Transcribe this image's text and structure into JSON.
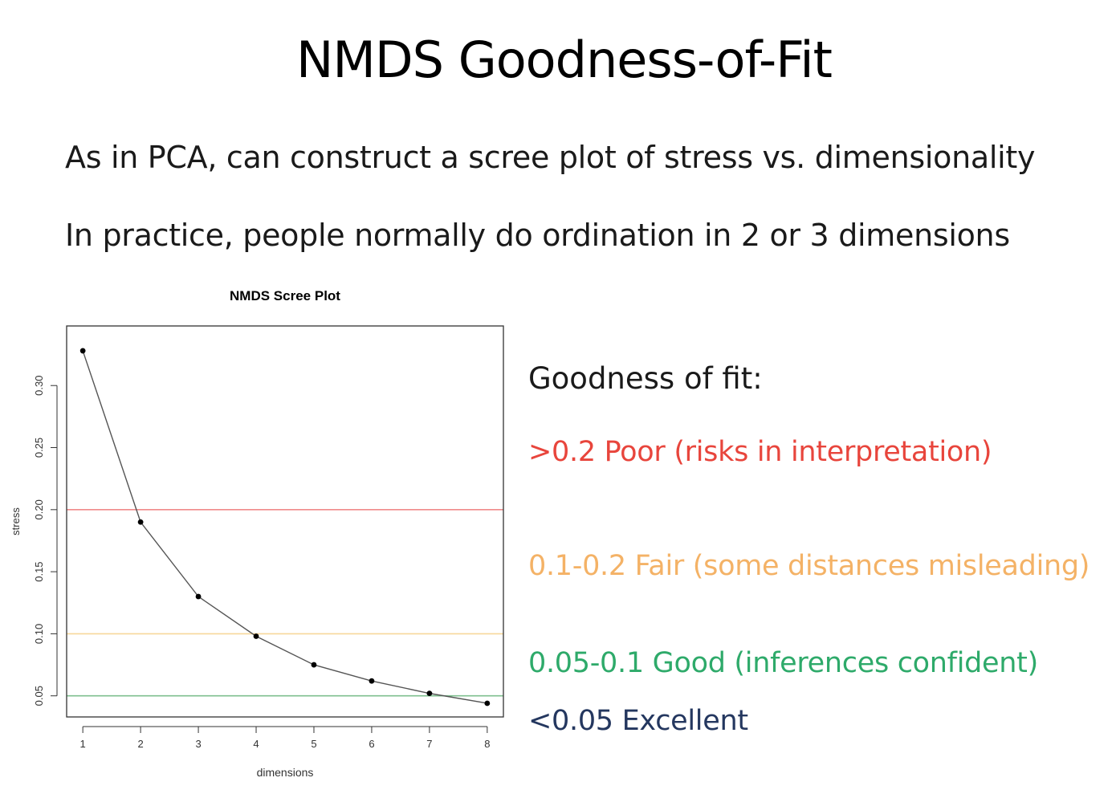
{
  "slide": {
    "title": "NMDS Goodness-of-Fit",
    "bullets": [
      "As in PCA, can construct a scree plot of stress vs. dimensionality",
      "In practice, people normally do ordination in 2 or 3 dimensions"
    ]
  },
  "chart_data": {
    "type": "line",
    "title": "NMDS Scree Plot",
    "xlabel": "dimensions",
    "ylabel": "stress",
    "x": [
      1,
      2,
      3,
      4,
      5,
      6,
      7,
      8
    ],
    "series": [
      {
        "values": [
          0.328,
          0.19,
          0.13,
          0.098,
          0.075,
          0.062,
          0.052,
          0.044
        ]
      }
    ],
    "xticks": [
      "1",
      "2",
      "3",
      "4",
      "5",
      "6",
      "7",
      "8"
    ],
    "yticks": [
      "0.05",
      "0.10",
      "0.15",
      "0.20",
      "0.25",
      "0.30"
    ],
    "xlim": [
      0.72,
      8.28
    ],
    "ylim": [
      0.033,
      0.348
    ],
    "reference_lines": [
      {
        "y": 0.2,
        "color": "#f08a8a"
      },
      {
        "y": 0.1,
        "color": "#f7d89a"
      },
      {
        "y": 0.05,
        "color": "#7fbf8f"
      }
    ],
    "line_color": "#555555",
    "grid": false
  },
  "legend": {
    "heading": "Goodness of fit:",
    "items": [
      {
        "label": ">0.2 Poor (risks in interpretation)",
        "color": "#e8453c"
      },
      {
        "label": "0.1-0.2 Fair (some distances misleading)",
        "color": "#f4b266"
      },
      {
        "label": "0.05-0.1 Good (inferences confident)",
        "color": "#2eaa6a"
      },
      {
        "label": "<0.05 Excellent",
        "color": "#24375f"
      }
    ]
  }
}
